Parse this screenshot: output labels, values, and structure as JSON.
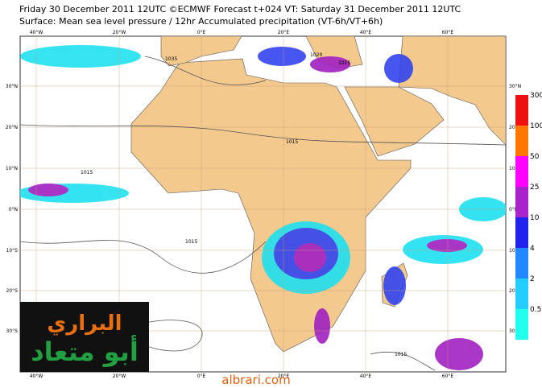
{
  "header": {
    "line1": "Friday 30 December 2011 12UTC ©ECMWF Forecast t+024 VT: Saturday 31 December 2011 12UTC",
    "line2": "Surface: Mean sea level pressure / 12hr Accumulated precipitation (VT-6h/VT+6h)"
  },
  "map": {
    "lat_labels": [
      "30°N",
      "20°N",
      "10°N",
      "0°N",
      "10°S",
      "20°S",
      "30°S"
    ],
    "lon_labels": [
      "40°W",
      "20°W",
      "0°E",
      "20°E",
      "40°E",
      "60°E"
    ],
    "contour_labels": [
      "1035",
      "1015",
      "1015",
      "1015",
      "1015",
      "1015",
      "1020"
    ]
  },
  "colorbar": {
    "labels": [
      "300",
      "100",
      "50",
      "25",
      "10",
      "4",
      "2",
      "0.5"
    ]
  },
  "logo": {
    "line1": "البراري",
    "line2": "أبو متعاد"
  },
  "watermark": "albrari.com"
}
